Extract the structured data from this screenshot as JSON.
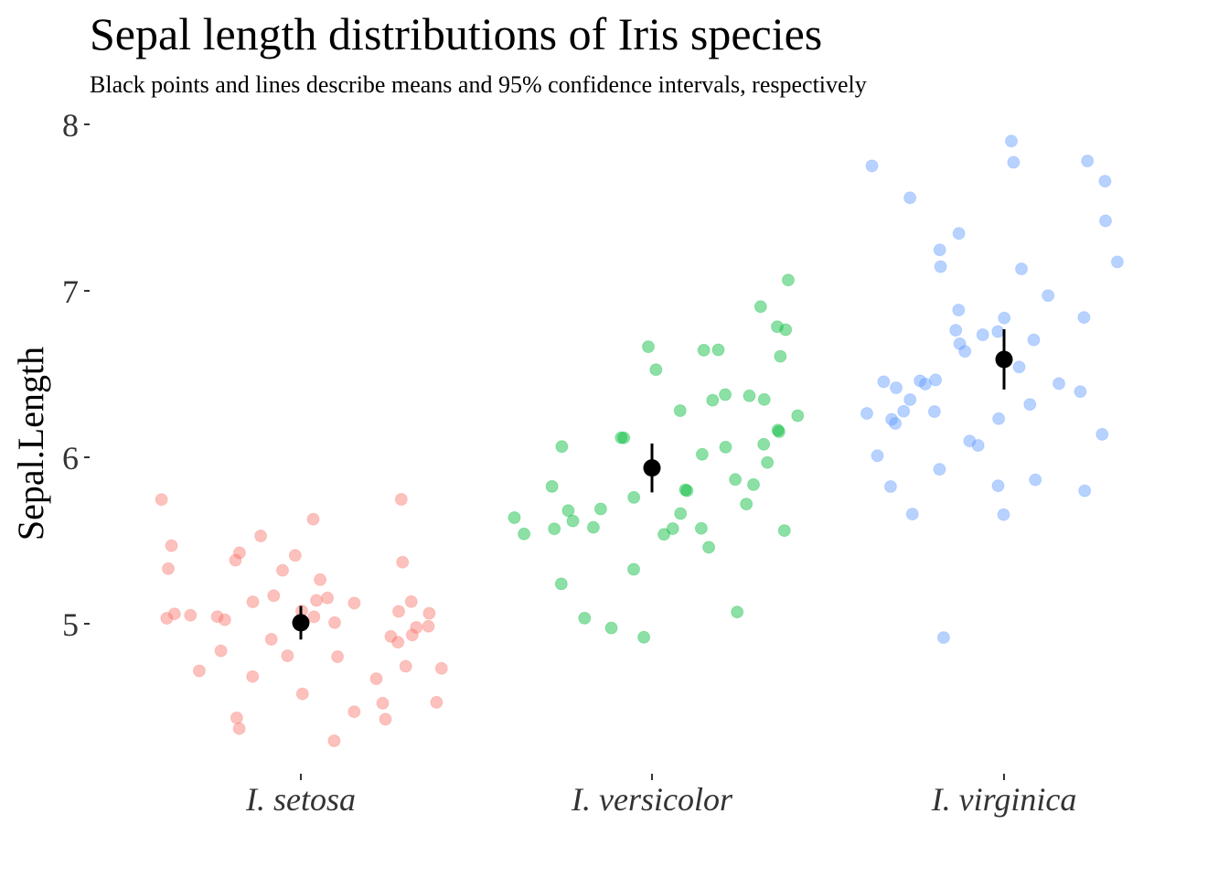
{
  "chart_data": {
    "type": "scatter",
    "title": "Sepal length distributions of Iris species",
    "subtitle": "Black points and lines describe means and 95% confidence intervals, respectively",
    "xlabel": "",
    "ylabel": "Sepal.Length",
    "x_type": "categorical-jitter",
    "categories": [
      "I. setosa",
      "I. versicolor",
      "I. virginica"
    ],
    "ylim": [
      4.1,
      8.2
    ],
    "yticks": [
      5,
      6,
      7,
      8
    ],
    "ytick_labels": [
      "5",
      "6",
      "7",
      "8"
    ],
    "grid": false,
    "legend": "none",
    "point_alpha": 0.45,
    "summary_color": "#000000",
    "series": [
      {
        "category": "I. setosa",
        "color": "#F8766D",
        "mean": 5.006,
        "ci": [
          4.905,
          5.107
        ],
        "values": [
          5.1,
          4.9,
          4.7,
          4.6,
          5.0,
          5.4,
          4.6,
          5.0,
          4.4,
          4.9,
          5.4,
          4.8,
          4.8,
          4.3,
          5.8,
          5.7,
          5.4,
          5.1,
          5.7,
          5.1,
          5.4,
          5.1,
          4.6,
          5.1,
          4.8,
          5.0,
          5.0,
          5.2,
          5.2,
          4.7,
          4.8,
          5.4,
          5.2,
          5.5,
          4.9,
          5.0,
          5.5,
          4.9,
          4.4,
          5.1,
          5.0,
          4.5,
          4.4,
          5.0,
          5.1,
          4.8,
          5.1,
          4.6,
          5.3,
          5.0
        ]
      },
      {
        "category": "I. versicolor",
        "color": "#00BA38",
        "mean": 5.936,
        "ci": [
          5.789,
          6.083
        ],
        "values": [
          7.0,
          6.4,
          6.9,
          5.5,
          6.5,
          5.7,
          6.3,
          4.9,
          6.6,
          5.2,
          5.0,
          5.9,
          6.0,
          6.1,
          5.6,
          6.7,
          5.6,
          5.8,
          6.2,
          5.6,
          5.9,
          6.1,
          6.3,
          6.1,
          6.4,
          6.6,
          6.8,
          6.7,
          6.0,
          5.7,
          5.5,
          5.5,
          5.8,
          6.0,
          5.4,
          6.0,
          6.7,
          6.3,
          5.6,
          5.5,
          5.5,
          6.1,
          5.8,
          5.0,
          5.6,
          5.7,
          5.7,
          6.2,
          5.1,
          5.7
        ]
      },
      {
        "category": "I. virginica",
        "color": "#619CFF",
        "mean": 6.588,
        "ci": [
          6.407,
          6.769
        ],
        "values": [
          6.3,
          5.8,
          7.1,
          6.3,
          6.5,
          7.6,
          4.9,
          7.3,
          6.7,
          7.2,
          6.5,
          6.4,
          6.8,
          5.7,
          5.8,
          6.4,
          6.5,
          7.7,
          7.7,
          6.0,
          6.9,
          5.6,
          7.7,
          6.3,
          6.7,
          7.2,
          6.2,
          6.1,
          6.4,
          7.2,
          7.4,
          7.9,
          6.4,
          6.3,
          6.1,
          7.7,
          6.3,
          6.4,
          6.0,
          6.9,
          6.7,
          6.9,
          5.8,
          6.8,
          6.7,
          6.7,
          6.3,
          6.5,
          6.2,
          5.9
        ]
      }
    ]
  }
}
